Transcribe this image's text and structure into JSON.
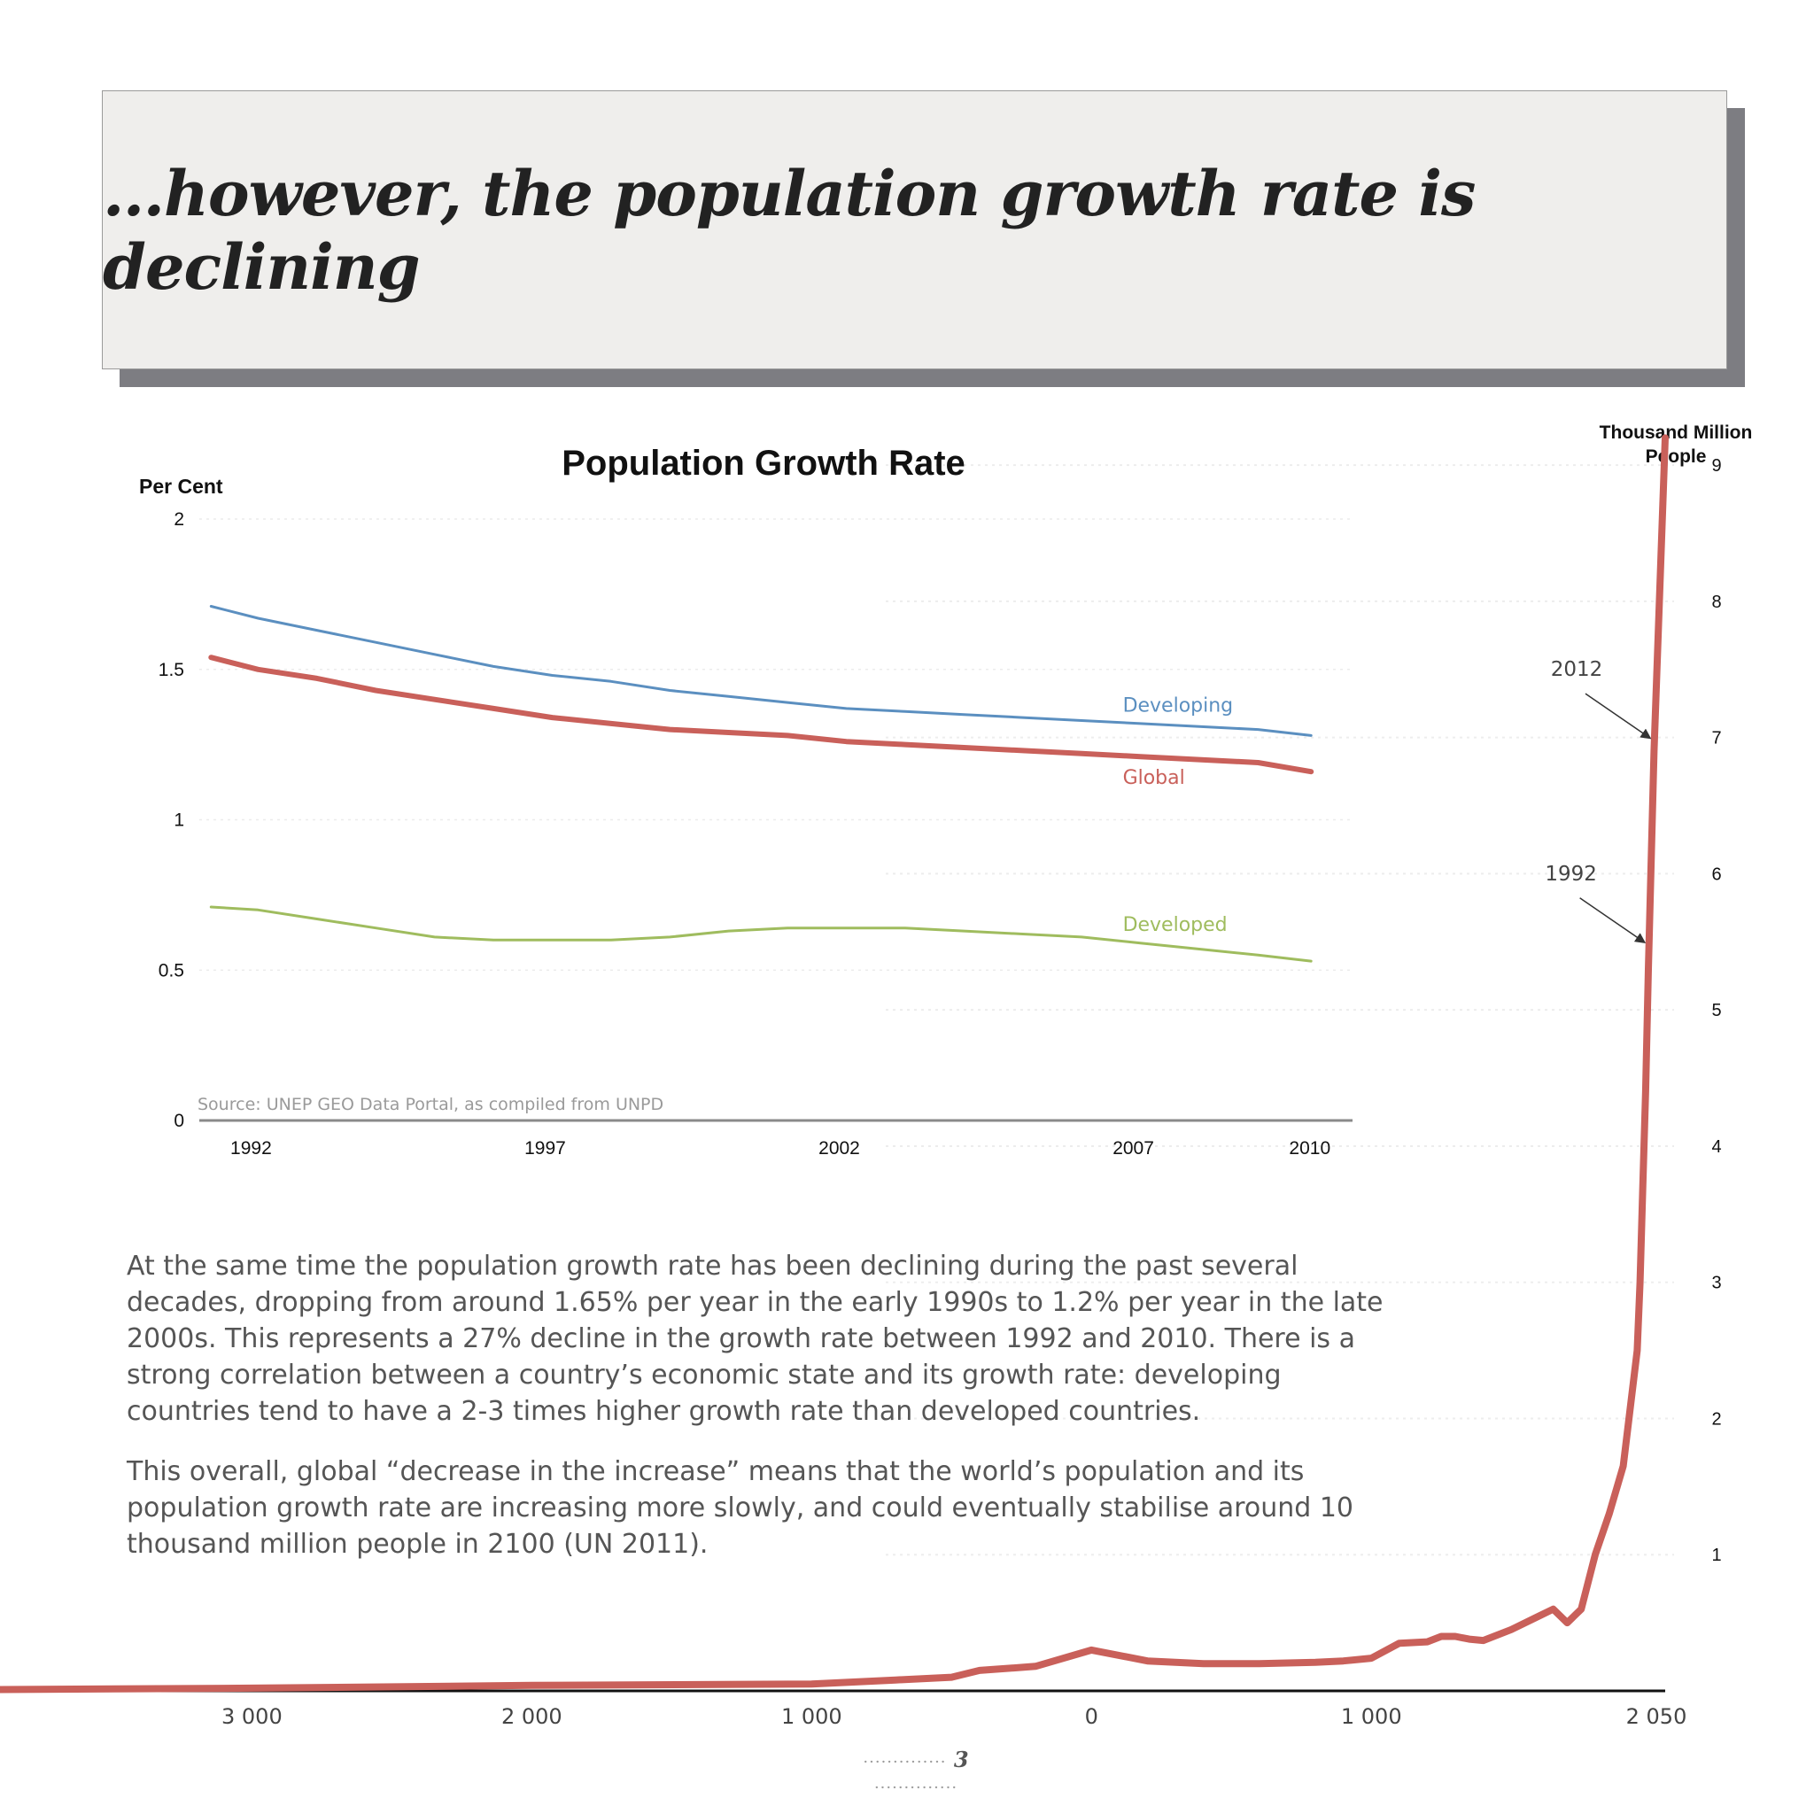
{
  "headline": "…however, the population growth rate is declining",
  "paragraphs": {
    "p1": "At the same time the population growth rate has been declining during the past several decades, dropping from around 1.65% per year in the early 1990s to 1.2% per year in the late 2000s. This represents a 27% decline in the growth rate between 1992 and 2010. There is a strong correlation between a country’s economic state and its growth rate: developing countries tend to have a 2-3 times higher growth rate than developed countries.",
    "p2": "This overall, global “decrease in the increase” means that the world’s population and its population growth rate are increasing more slowly, and could eventually stabilise around 10 thousand million people in 2100 (UN 2011)."
  },
  "page_number": "3",
  "colors": {
    "developing": "#5b8fc0",
    "global": "#c9605a",
    "developed": "#9fbc5e",
    "population": "#c9605a"
  },
  "chart_data": [
    {
      "type": "line",
      "title": "Population Growth Rate",
      "ylabel": "Per Cent",
      "xlabel": "",
      "source": "Source: UNEP GEO Data Portal, as compiled from UNPD",
      "xlim": [
        1991,
        2010.5
      ],
      "ylim": [
        0,
        2
      ],
      "x_ticks": [
        1992,
        1997,
        2002,
        2007,
        2010
      ],
      "y_ticks": [
        0,
        0.5,
        1,
        1.5,
        2
      ],
      "y_tick_labels": [
        "0",
        "0.5",
        "1",
        "1.5",
        "2"
      ],
      "grid": true,
      "series": [
        {
          "name": "Developing",
          "color_key": "developing",
          "x": [
            1991.2,
            1992,
            1993,
            1994,
            1995,
            1996,
            1997,
            1998,
            1999,
            2000,
            2001,
            2002,
            2003,
            2004,
            2005,
            2006,
            2007,
            2008,
            2009,
            2009.9
          ],
          "y": [
            1.71,
            1.67,
            1.63,
            1.59,
            1.55,
            1.51,
            1.48,
            1.46,
            1.43,
            1.41,
            1.39,
            1.37,
            1.36,
            1.35,
            1.34,
            1.33,
            1.32,
            1.31,
            1.3,
            1.28
          ]
        },
        {
          "name": "Global",
          "color_key": "global",
          "x": [
            1991.2,
            1992,
            1993,
            1994,
            1995,
            1996,
            1997,
            1998,
            1999,
            2000,
            2001,
            2002,
            2003,
            2004,
            2005,
            2006,
            2007,
            2008,
            2009,
            2009.9
          ],
          "y": [
            1.54,
            1.5,
            1.47,
            1.43,
            1.4,
            1.37,
            1.34,
            1.32,
            1.3,
            1.29,
            1.28,
            1.26,
            1.25,
            1.24,
            1.23,
            1.22,
            1.21,
            1.2,
            1.19,
            1.16
          ]
        },
        {
          "name": "Developed",
          "color_key": "developed",
          "x": [
            1991.2,
            1992,
            1993,
            1994,
            1995,
            1996,
            1997,
            1998,
            1999,
            2000,
            2001,
            2002,
            2003,
            2004,
            2005,
            2006,
            2007,
            2008,
            2009,
            2009.9
          ],
          "y": [
            0.71,
            0.7,
            0.67,
            0.64,
            0.61,
            0.6,
            0.6,
            0.6,
            0.61,
            0.63,
            0.64,
            0.64,
            0.64,
            0.63,
            0.62,
            0.61,
            0.59,
            0.57,
            0.55,
            0.53
          ]
        }
      ],
      "series_label_positions": {
        "Developing": [
          2007,
          1.36
        ],
        "Global": [
          2007,
          1.12
        ],
        "Developed": [
          2007,
          0.63
        ]
      }
    },
    {
      "type": "line",
      "title": "",
      "ylabel": "Thousand Million People",
      "xlim": [
        -3900,
        2050
      ],
      "ylim": [
        0,
        9.3
      ],
      "x_ticks": [
        -3000,
        -2000,
        -1000,
        0,
        1000,
        2050
      ],
      "x_tick_labels": [
        "3 000",
        "2 000",
        "1 000",
        "0",
        "1 000",
        "2 050"
      ],
      "y_ticks": [
        1,
        2,
        3,
        4,
        5,
        6,
        7,
        8,
        9
      ],
      "annotations": [
        {
          "text": "2012",
          "x": 1860,
          "y": 7.4
        },
        {
          "text": "1992",
          "x": 1840,
          "y": 5.9
        }
      ],
      "series": [
        {
          "name": "",
          "color_key": "population",
          "x": [
            -3900,
            -3000,
            -2000,
            -1000,
            -700,
            -500,
            -400,
            -200,
            0,
            200,
            400,
            600,
            800,
            900,
            1000,
            1100,
            1200,
            1250,
            1300,
            1350,
            1400,
            1500,
            1600,
            1650,
            1700,
            1750,
            1800,
            1850,
            1900,
            1950,
            1960,
            1970,
            1980,
            1990,
            2000,
            2010,
            2050
          ],
          "y": [
            0.01,
            0.02,
            0.04,
            0.05,
            0.08,
            0.1,
            0.15,
            0.18,
            0.3,
            0.22,
            0.2,
            0.2,
            0.21,
            0.22,
            0.24,
            0.35,
            0.36,
            0.4,
            0.4,
            0.38,
            0.37,
            0.45,
            0.55,
            0.6,
            0.5,
            0.6,
            1.0,
            1.3,
            1.65,
            2.5,
            3.0,
            3.7,
            4.4,
            5.3,
            6.1,
            6.9,
            9.2
          ]
        }
      ]
    }
  ]
}
